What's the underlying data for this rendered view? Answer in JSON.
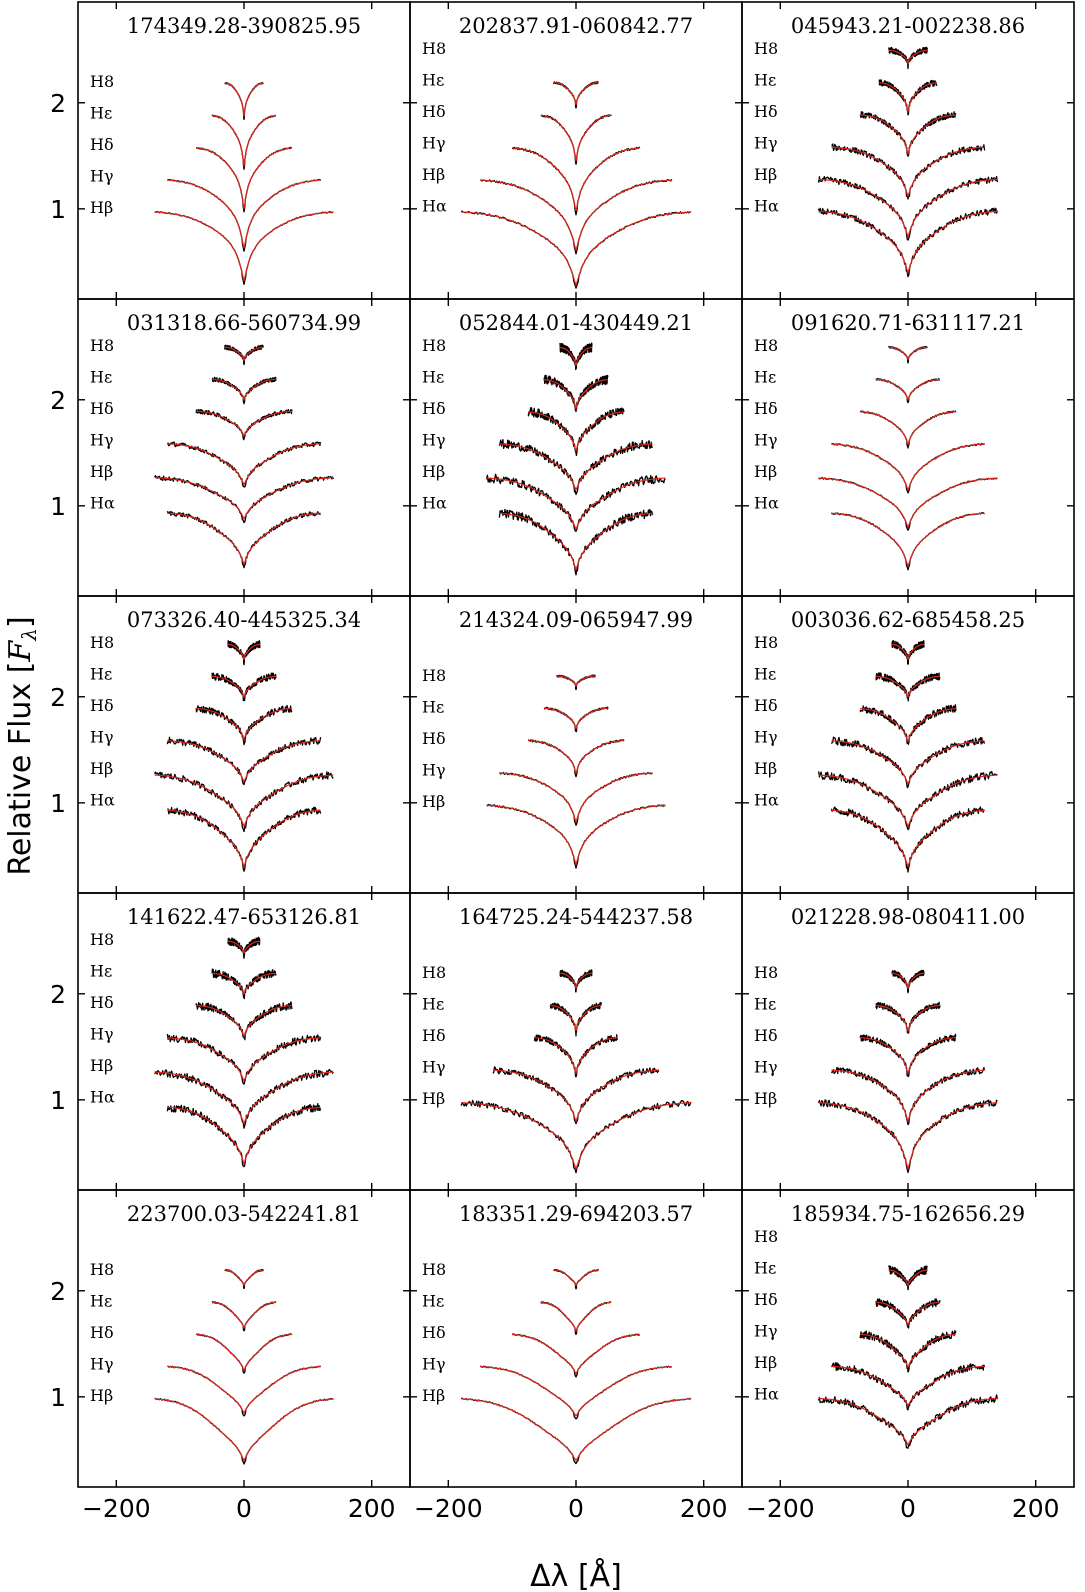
{
  "figure": {
    "ylabel_text": "Relative Flux [",
    "ylabel_sym": "F",
    "ylabel_sub": "λ",
    "ylabel_end": "]",
    "xlabel_text": "Δλ [Å]"
  },
  "chart_data": {
    "type": "line",
    "xlabel": "Δλ [Å]",
    "ylabel": "Relative Flux [Fλ]",
    "xlim": [
      -260,
      260
    ],
    "ylim": [
      0.15,
      2.95
    ],
    "xticks": [
      -200,
      0,
      200
    ],
    "xtick_labels": [
      "−200",
      "0",
      "200"
    ],
    "yticks": [
      1,
      2
    ],
    "ytick_labels": [
      "1",
      "2"
    ],
    "grid": false,
    "series_styles": {
      "observed": "#000000",
      "model": "#e0261b"
    },
    "panels": [
      {
        "title": "174349.28-390825.95",
        "noise": 0.004,
        "lines": [
          {
            "label": "Hβ",
            "offset": 1.0,
            "depth": 0.68,
            "halfwidth": 140,
            "wing": 0.75
          },
          {
            "label": "Hγ",
            "offset": 1.3,
            "depth": 0.67,
            "halfwidth": 120,
            "wing": 0.72
          },
          {
            "label": "Hδ",
            "offset": 1.6,
            "depth": 0.6,
            "halfwidth": 75,
            "wing": 0.7
          },
          {
            "label": "Hε",
            "offset": 1.9,
            "depth": 0.5,
            "halfwidth": 50,
            "wing": 0.68
          },
          {
            "label": "H8",
            "offset": 2.2,
            "depth": 0.33,
            "halfwidth": 30,
            "wing": 0.65
          }
        ]
      },
      {
        "title": "202837.91-060842.77",
        "noise": 0.006,
        "lines": [
          {
            "label": "Hα",
            "offset": 1.0,
            "depth": 0.72,
            "halfwidth": 180,
            "wing": 0.68
          },
          {
            "label": "Hβ",
            "offset": 1.3,
            "depth": 0.69,
            "halfwidth": 150,
            "wing": 0.68
          },
          {
            "label": "Hγ",
            "offset": 1.6,
            "depth": 0.62,
            "halfwidth": 100,
            "wing": 0.66
          },
          {
            "label": "Hδ",
            "offset": 1.9,
            "depth": 0.45,
            "halfwidth": 55,
            "wing": 0.64
          },
          {
            "label": "Hε",
            "offset": 2.2,
            "depth": 0.22,
            "halfwidth": 35,
            "wing": 0.6
          },
          {
            "label": "H8",
            "offset": 2.5,
            "depth": 0.0,
            "halfwidth": 0,
            "wing": 0.6
          }
        ]
      },
      {
        "title": "045943.21-002238.86",
        "noise": 0.02,
        "lines": [
          {
            "label": "Hα",
            "offset": 1.0,
            "depth": 0.6,
            "halfwidth": 140,
            "wing": 0.62
          },
          {
            "label": "Hβ",
            "offset": 1.3,
            "depth": 0.56,
            "halfwidth": 140,
            "wing": 0.62
          },
          {
            "label": "Hγ",
            "offset": 1.6,
            "depth": 0.48,
            "halfwidth": 120,
            "wing": 0.62
          },
          {
            "label": "Hδ",
            "offset": 1.9,
            "depth": 0.38,
            "halfwidth": 75,
            "wing": 0.6
          },
          {
            "label": "Hε",
            "offset": 2.2,
            "depth": 0.28,
            "halfwidth": 45,
            "wing": 0.6
          },
          {
            "label": "H8",
            "offset": 2.5,
            "depth": 0.13,
            "halfwidth": 30,
            "wing": 0.6
          }
        ]
      },
      {
        "title": "031318.66-560734.99",
        "noise": 0.014,
        "lines": [
          {
            "label": "Hα",
            "offset": 0.95,
            "depth": 0.5,
            "halfwidth": 120,
            "wing": 0.55
          },
          {
            "label": "Hβ",
            "offset": 1.28,
            "depth": 0.4,
            "halfwidth": 140,
            "wing": 0.55
          },
          {
            "label": "Hγ",
            "offset": 1.6,
            "depth": 0.4,
            "halfwidth": 120,
            "wing": 0.55
          },
          {
            "label": "Hδ",
            "offset": 1.9,
            "depth": 0.24,
            "halfwidth": 75,
            "wing": 0.55
          },
          {
            "label": "Hε",
            "offset": 2.2,
            "depth": 0.2,
            "halfwidth": 50,
            "wing": 0.55
          },
          {
            "label": "H8",
            "offset": 2.5,
            "depth": 0.13,
            "halfwidth": 30,
            "wing": 0.55
          }
        ]
      },
      {
        "title": "052844.01-430449.21",
        "noise": 0.028,
        "lines": [
          {
            "label": "Hα",
            "offset": 0.95,
            "depth": 0.55,
            "halfwidth": 120,
            "wing": 0.55
          },
          {
            "label": "Hβ",
            "offset": 1.28,
            "depth": 0.5,
            "halfwidth": 140,
            "wing": 0.55
          },
          {
            "label": "Hγ",
            "offset": 1.6,
            "depth": 0.45,
            "halfwidth": 120,
            "wing": 0.55
          },
          {
            "label": "Hδ",
            "offset": 1.9,
            "depth": 0.38,
            "halfwidth": 75,
            "wing": 0.55
          },
          {
            "label": "Hε",
            "offset": 2.2,
            "depth": 0.28,
            "halfwidth": 50,
            "wing": 0.55
          },
          {
            "label": "H8",
            "offset": 2.5,
            "depth": 0.18,
            "halfwidth": 25,
            "wing": 0.55
          }
        ]
      },
      {
        "title": "091620.71-631117.21",
        "noise": 0.005,
        "lines": [
          {
            "label": "Hα",
            "offset": 0.95,
            "depth": 0.52,
            "halfwidth": 120,
            "wing": 0.6
          },
          {
            "label": "Hβ",
            "offset": 1.28,
            "depth": 0.48,
            "halfwidth": 140,
            "wing": 0.6
          },
          {
            "label": "Hγ",
            "offset": 1.6,
            "depth": 0.45,
            "halfwidth": 120,
            "wing": 0.6
          },
          {
            "label": "Hδ",
            "offset": 1.9,
            "depth": 0.32,
            "halfwidth": 75,
            "wing": 0.58
          },
          {
            "label": "Hε",
            "offset": 2.2,
            "depth": 0.2,
            "halfwidth": 50,
            "wing": 0.58
          },
          {
            "label": "H8",
            "offset": 2.5,
            "depth": 0.12,
            "halfwidth": 30,
            "wing": 0.55
          }
        ]
      },
      {
        "title": "073326.40-445325.34",
        "noise": 0.022,
        "lines": [
          {
            "label": "Hα",
            "offset": 0.95,
            "depth": 0.55,
            "halfwidth": 120,
            "wing": 0.55
          },
          {
            "label": "Hβ",
            "offset": 1.28,
            "depth": 0.5,
            "halfwidth": 140,
            "wing": 0.55
          },
          {
            "label": "Hγ",
            "offset": 1.6,
            "depth": 0.4,
            "halfwidth": 120,
            "wing": 0.55
          },
          {
            "label": "Hδ",
            "offset": 1.9,
            "depth": 0.3,
            "halfwidth": 75,
            "wing": 0.55
          },
          {
            "label": "Hε",
            "offset": 2.2,
            "depth": 0.2,
            "halfwidth": 50,
            "wing": 0.55
          },
          {
            "label": "H8",
            "offset": 2.5,
            "depth": 0.15,
            "halfwidth": 25,
            "wing": 0.55
          }
        ]
      },
      {
        "title": "214324.09-065947.99",
        "noise": 0.006,
        "lines": [
          {
            "label": "Hβ",
            "offset": 1.0,
            "depth": 0.58,
            "halfwidth": 140,
            "wing": 0.68
          },
          {
            "label": "Hγ",
            "offset": 1.3,
            "depth": 0.48,
            "halfwidth": 120,
            "wing": 0.66
          },
          {
            "label": "Hδ",
            "offset": 1.6,
            "depth": 0.32,
            "halfwidth": 75,
            "wing": 0.64
          },
          {
            "label": "Hε",
            "offset": 1.9,
            "depth": 0.2,
            "halfwidth": 50,
            "wing": 0.62
          },
          {
            "label": "H8",
            "offset": 2.2,
            "depth": 0.1,
            "halfwidth": 30,
            "wing": 0.6
          }
        ]
      },
      {
        "title": "003036.62-685458.25",
        "noise": 0.024,
        "lines": [
          {
            "label": "Hα",
            "offset": 0.95,
            "depth": 0.55,
            "halfwidth": 120,
            "wing": 0.55
          },
          {
            "label": "Hβ",
            "offset": 1.28,
            "depth": 0.5,
            "halfwidth": 140,
            "wing": 0.55
          },
          {
            "label": "Hγ",
            "offset": 1.6,
            "depth": 0.42,
            "halfwidth": 120,
            "wing": 0.55
          },
          {
            "label": "Hδ",
            "offset": 1.9,
            "depth": 0.32,
            "halfwidth": 75,
            "wing": 0.55
          },
          {
            "label": "Hε",
            "offset": 2.2,
            "depth": 0.2,
            "halfwidth": 50,
            "wing": 0.55
          },
          {
            "label": "H8",
            "offset": 2.5,
            "depth": 0.15,
            "halfwidth": 25,
            "wing": 0.55
          }
        ]
      },
      {
        "title": "141622.47-653126.81",
        "noise": 0.025,
        "lines": [
          {
            "label": "Hα",
            "offset": 0.95,
            "depth": 0.55,
            "halfwidth": 120,
            "wing": 0.55
          },
          {
            "label": "Hβ",
            "offset": 1.28,
            "depth": 0.5,
            "halfwidth": 140,
            "wing": 0.55
          },
          {
            "label": "Hγ",
            "offset": 1.6,
            "depth": 0.42,
            "halfwidth": 120,
            "wing": 0.55
          },
          {
            "label": "Hδ",
            "offset": 1.9,
            "depth": 0.3,
            "halfwidth": 75,
            "wing": 0.55
          },
          {
            "label": "Hε",
            "offset": 2.2,
            "depth": 0.2,
            "halfwidth": 50,
            "wing": 0.55
          },
          {
            "label": "H8",
            "offset": 2.5,
            "depth": 0.12,
            "halfwidth": 25,
            "wing": 0.55
          }
        ]
      },
      {
        "title": "164725.24-544237.58",
        "noise": 0.02,
        "lines": [
          {
            "label": "Hβ",
            "offset": 1.0,
            "depth": 0.65,
            "halfwidth": 180,
            "wing": 0.65
          },
          {
            "label": "Hγ",
            "offset": 1.3,
            "depth": 0.5,
            "halfwidth": 130,
            "wing": 0.62
          },
          {
            "label": "Hδ",
            "offset": 1.6,
            "depth": 0.35,
            "halfwidth": 65,
            "wing": 0.6
          },
          {
            "label": "Hε",
            "offset": 1.9,
            "depth": 0.25,
            "halfwidth": 40,
            "wing": 0.6
          },
          {
            "label": "H8",
            "offset": 2.2,
            "depth": 0.15,
            "halfwidth": 25,
            "wing": 0.58
          }
        ]
      },
      {
        "title": "021228.98-080411.00",
        "noise": 0.02,
        "lines": [
          {
            "label": "Hβ",
            "offset": 1.0,
            "depth": 0.65,
            "halfwidth": 140,
            "wing": 0.68
          },
          {
            "label": "Hγ",
            "offset": 1.3,
            "depth": 0.5,
            "halfwidth": 120,
            "wing": 0.65
          },
          {
            "label": "Hδ",
            "offset": 1.6,
            "depth": 0.35,
            "halfwidth": 75,
            "wing": 0.62
          },
          {
            "label": "Hε",
            "offset": 1.9,
            "depth": 0.25,
            "halfwidth": 50,
            "wing": 0.6
          },
          {
            "label": "H8",
            "offset": 2.2,
            "depth": 0.15,
            "halfwidth": 25,
            "wing": 0.58
          }
        ]
      },
      {
        "title": "223700.03-542241.81",
        "noise": 0.004,
        "lines": [
          {
            "label": "Hβ",
            "offset": 1.0,
            "depth": 0.6,
            "halfwidth": 140,
            "wing": 0.4
          },
          {
            "label": "Hγ",
            "offset": 1.3,
            "depth": 0.45,
            "halfwidth": 120,
            "wing": 0.4
          },
          {
            "label": "Hδ",
            "offset": 1.6,
            "depth": 0.35,
            "halfwidth": 75,
            "wing": 0.4
          },
          {
            "label": "Hε",
            "offset": 1.9,
            "depth": 0.25,
            "halfwidth": 50,
            "wing": 0.4
          },
          {
            "label": "H8",
            "offset": 2.2,
            "depth": 0.15,
            "halfwidth": 30,
            "wing": 0.4
          }
        ]
      },
      {
        "title": "183351.29-694203.57",
        "noise": 0.004,
        "lines": [
          {
            "label": "Hβ",
            "offset": 1.0,
            "depth": 0.6,
            "halfwidth": 180,
            "wing": 0.4
          },
          {
            "label": "Hγ",
            "offset": 1.3,
            "depth": 0.48,
            "halfwidth": 150,
            "wing": 0.4
          },
          {
            "label": "Hδ",
            "offset": 1.6,
            "depth": 0.38,
            "halfwidth": 100,
            "wing": 0.4
          },
          {
            "label": "Hε",
            "offset": 1.9,
            "depth": 0.28,
            "halfwidth": 55,
            "wing": 0.4
          },
          {
            "label": "H8",
            "offset": 2.2,
            "depth": 0.15,
            "halfwidth": 35,
            "wing": 0.4
          }
        ]
      },
      {
        "title": "185934.75-162656.29",
        "noise": 0.025,
        "lines": [
          {
            "label": "Hα",
            "offset": 1.0,
            "depth": 0.45,
            "halfwidth": 140,
            "wing": 0.45
          },
          {
            "label": "Hβ",
            "offset": 1.3,
            "depth": 0.38,
            "halfwidth": 120,
            "wing": 0.45
          },
          {
            "label": "Hγ",
            "offset": 1.6,
            "depth": 0.32,
            "halfwidth": 75,
            "wing": 0.45
          },
          {
            "label": "Hδ",
            "offset": 1.9,
            "depth": 0.22,
            "halfwidth": 50,
            "wing": 0.45
          },
          {
            "label": "Hε",
            "offset": 2.2,
            "depth": 0.15,
            "halfwidth": 30,
            "wing": 0.45
          },
          {
            "label": "H8",
            "offset": 2.5,
            "depth": 0.0,
            "halfwidth": 0,
            "wing": 0.45
          }
        ]
      }
    ]
  }
}
